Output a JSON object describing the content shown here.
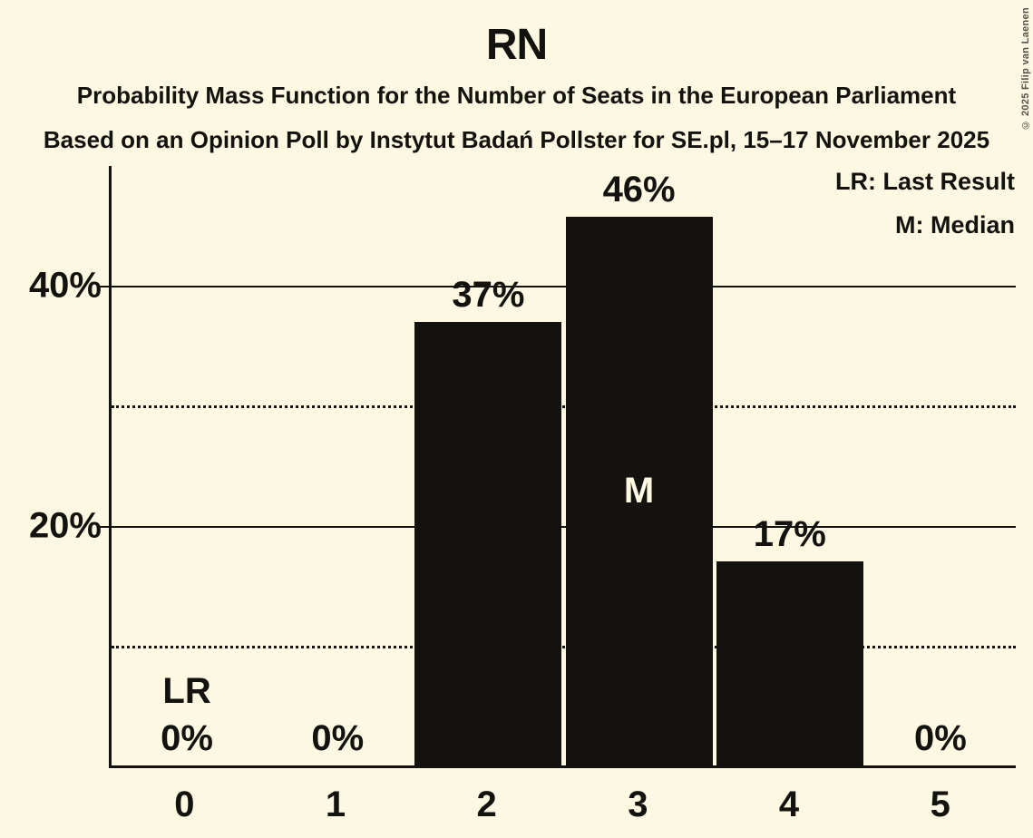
{
  "header": {
    "title": "RN",
    "subtitle1": "Probability Mass Function for the Number of Seats in the European Parliament",
    "subtitle2": "Based on an Opinion Poll by Instytut Badań Pollster for SE.pl, 15–17 November 2025",
    "copyright": "© 2025 Filip van Laenen"
  },
  "legend": {
    "last_result": "LR: Last Result",
    "median": "M: Median"
  },
  "colors": {
    "background": "#FDF8E1",
    "bar": "#14120E",
    "text": "#14120E",
    "median_label": "#FDF8E1"
  },
  "chart_data": {
    "type": "bar",
    "title": "RN",
    "categories": [
      "0",
      "1",
      "2",
      "3",
      "4",
      "5"
    ],
    "values": [
      0,
      0,
      37,
      46,
      17,
      0
    ],
    "bar_labels": [
      "0%",
      "0%",
      "37%",
      "46%",
      "17%",
      "0%"
    ],
    "y_tick_labels": [
      "40%",
      "20%"
    ],
    "ylim": [
      0,
      50
    ],
    "gridlines_solid": [
      20,
      40
    ],
    "gridlines_dotted": [
      10,
      30
    ],
    "grid": true,
    "legend_position": "top-right",
    "annotations": {
      "last_result_seat": 0,
      "last_result_label": "LR",
      "median_seat": 3,
      "median_label": "M"
    }
  }
}
